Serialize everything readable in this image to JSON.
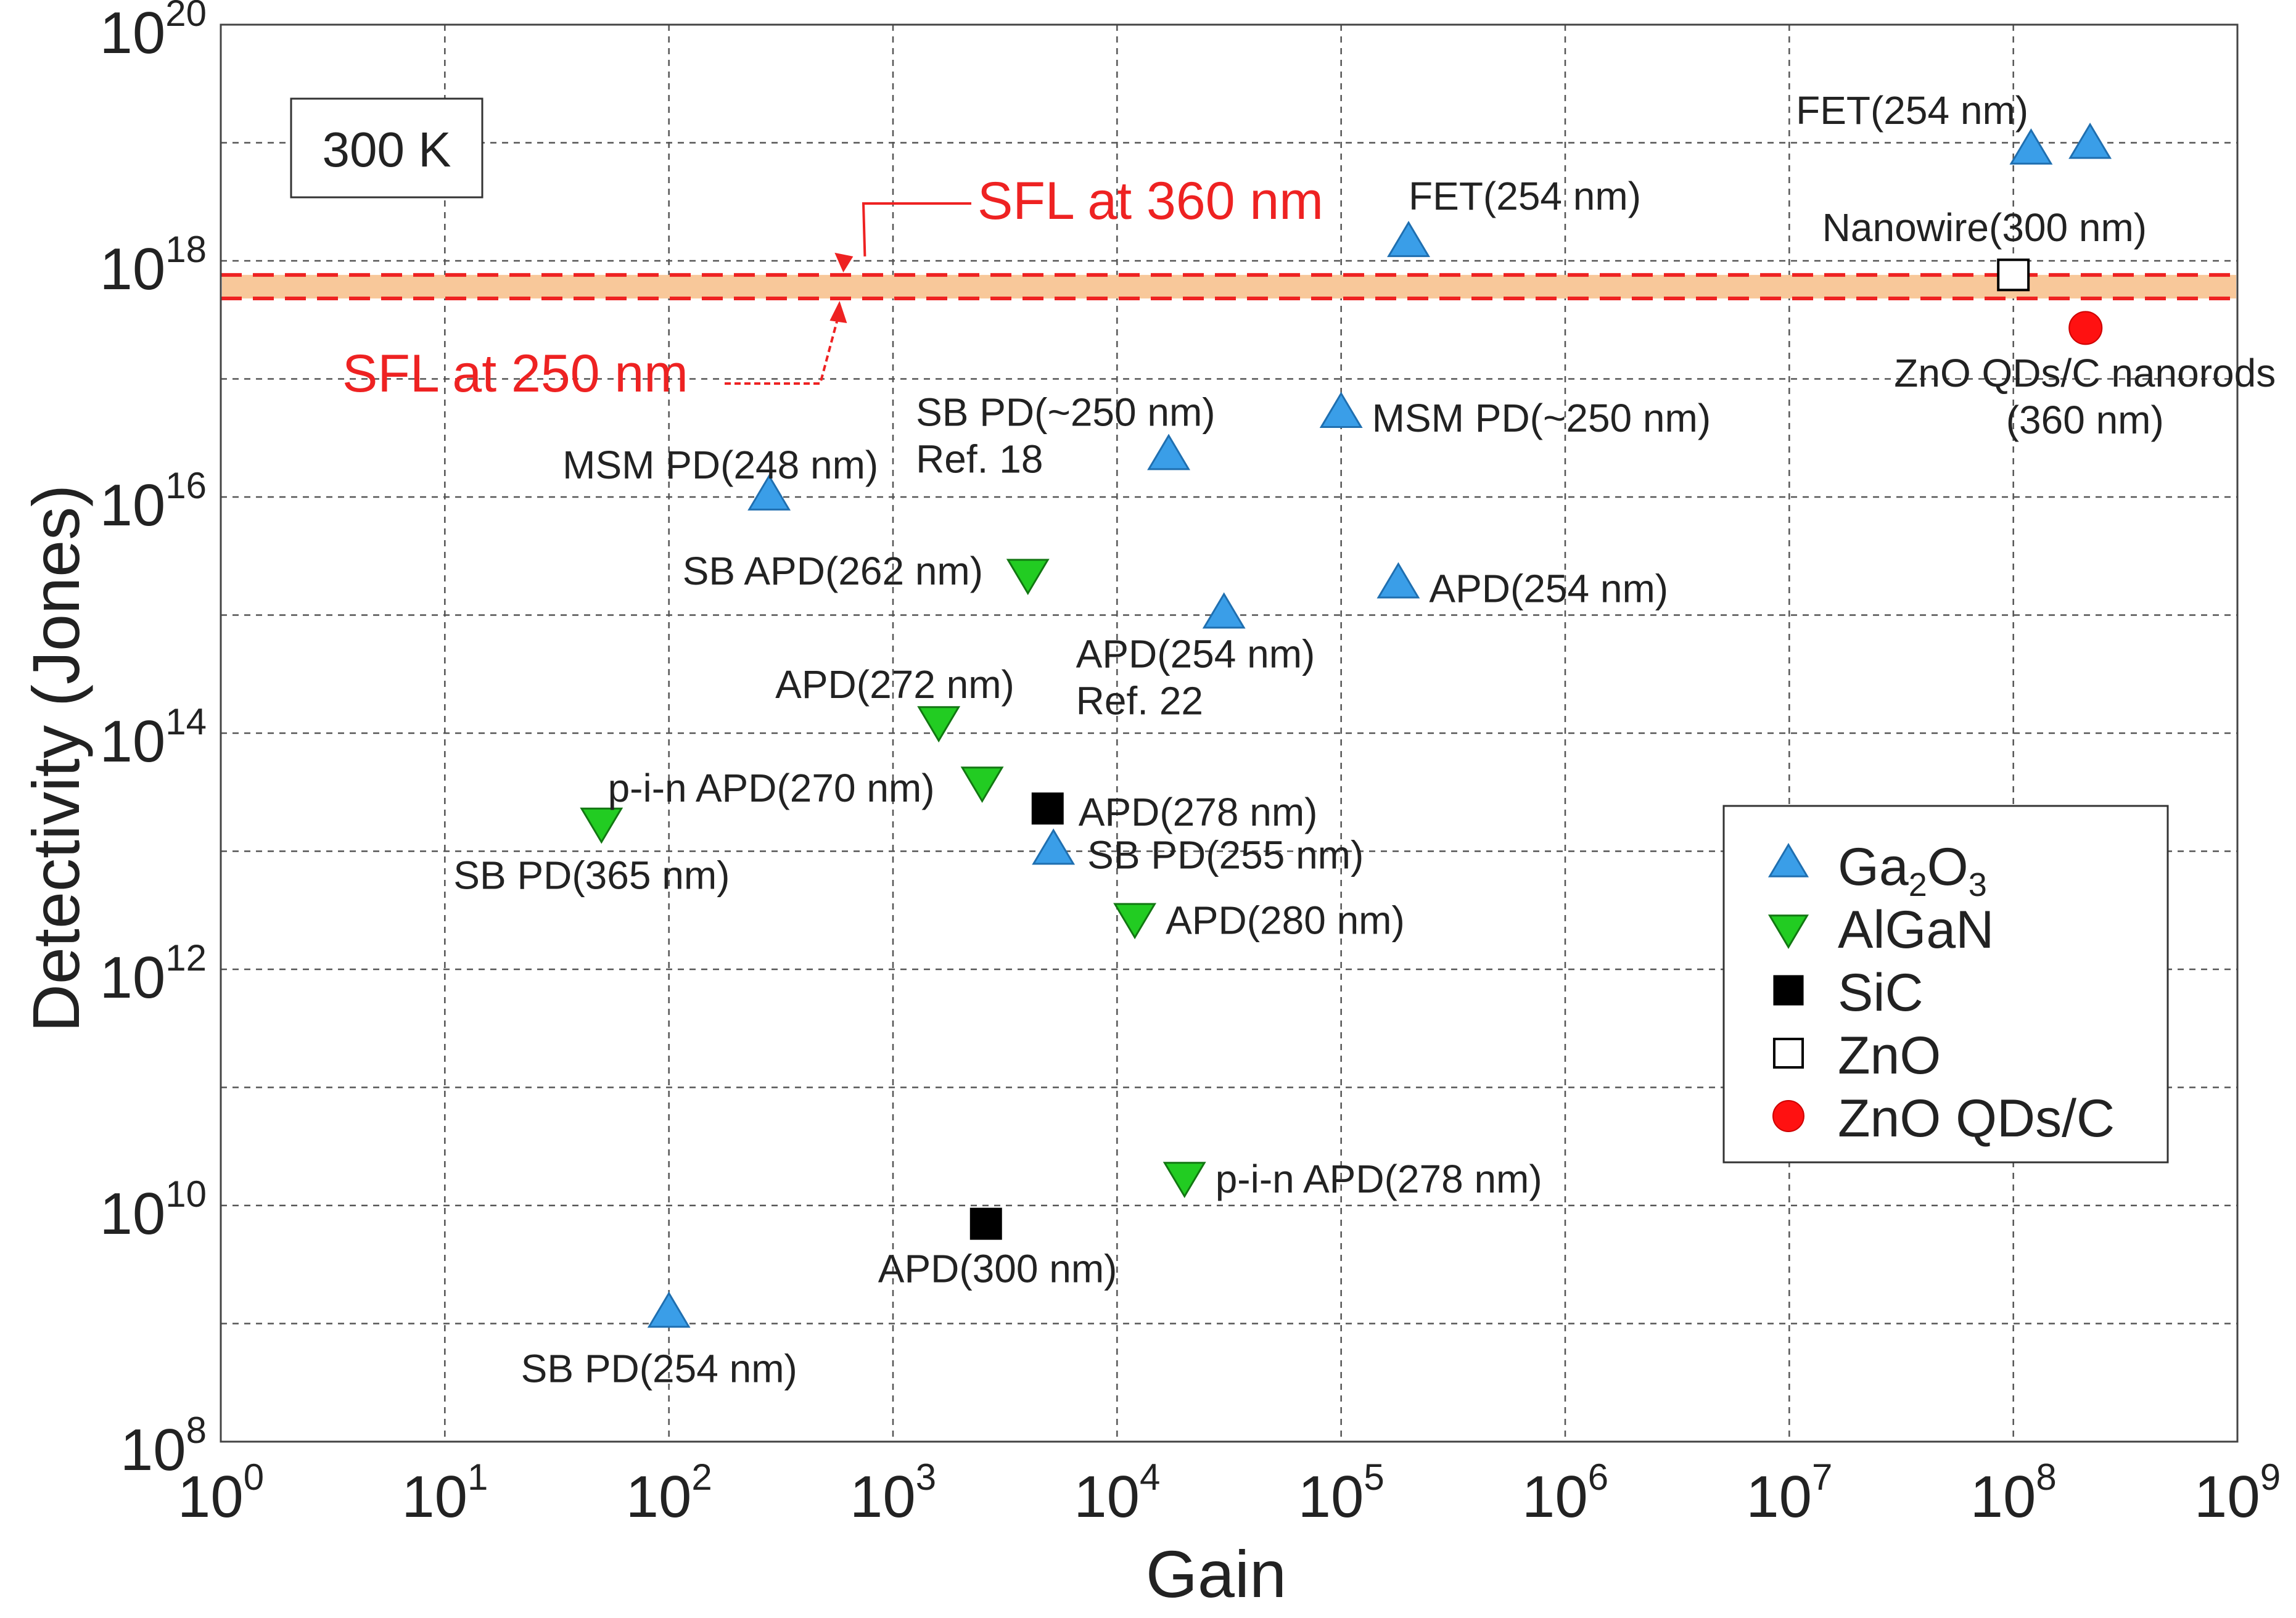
{
  "chart_data": {
    "type": "scatter",
    "title": "",
    "xlabel": "Gain",
    "ylabel": "Detectivity (Jones)",
    "x_scale": "log",
    "y_scale": "log",
    "xlim": [
      1,
      1000000000.0
    ],
    "ylim": [
      100000000.0,
      1e+20
    ],
    "grid": true,
    "x_ticks": [
      {
        "base": "10",
        "exp": "0",
        "value": 1
      },
      {
        "base": "10",
        "exp": "1",
        "value": 10.0
      },
      {
        "base": "10",
        "exp": "2",
        "value": 100.0
      },
      {
        "base": "10",
        "exp": "3",
        "value": 1000.0
      },
      {
        "base": "10",
        "exp": "4",
        "value": 10000.0
      },
      {
        "base": "10",
        "exp": "5",
        "value": 100000.0
      },
      {
        "base": "10",
        "exp": "6",
        "value": 1000000.0
      },
      {
        "base": "10",
        "exp": "7",
        "value": 10000000.0
      },
      {
        "base": "10",
        "exp": "8",
        "value": 100000000.0
      },
      {
        "base": "10",
        "exp": "9",
        "value": 1000000000.0
      }
    ],
    "y_ticks": [
      {
        "base": "10",
        "exp": "8",
        "value": 100000000.0
      },
      {
        "base": "10",
        "exp": "10",
        "value": 10000000000.0
      },
      {
        "base": "10",
        "exp": "12",
        "value": 1000000000000.0
      },
      {
        "base": "10",
        "exp": "14",
        "value": 100000000000000.0
      },
      {
        "base": "10",
        "exp": "16",
        "value": 1e+16
      },
      {
        "base": "10",
        "exp": "18",
        "value": 1e+18
      },
      {
        "base": "10",
        "exp": "20",
        "value": 1e+20
      }
    ],
    "temperature_label": "300 K",
    "colors": {
      "Ga2O3": "#3a9ee8",
      "AlGaN": "#22cc22",
      "SiC": "#000000",
      "ZnO": "#ffffff",
      "ZnO QDs/C": "#ff1111",
      "sfl_line": "#ee2222",
      "sfl_band": "#f8c89a"
    },
    "legend": {
      "position": "bottom-right",
      "entries": [
        {
          "series": "Ga2O3",
          "label": "Ga",
          "sub1": "2",
          "mid": "O",
          "sub2": "3"
        },
        {
          "series": "AlGaN",
          "label": "AlGaN"
        },
        {
          "series": "SiC",
          "label": "SiC"
        },
        {
          "series": "ZnO",
          "label": "ZnO"
        },
        {
          "series": "ZnO QDs/C",
          "label": "ZnO QDs/C"
        }
      ]
    },
    "reference_lines": [
      {
        "label": "SFL at 360 nm",
        "y": 7.6e+17
      },
      {
        "label": "SFL at 250 nm",
        "y": 4.8e+17
      }
    ],
    "series": [
      {
        "name": "Ga2O3",
        "marker": "triangle-up",
        "points": [
          {
            "x": 100,
            "y": 1200000000.0,
            "label": [
              "SB PD(254 nm)"
            ]
          },
          {
            "x": 280,
            "y": 1e+16,
            "label": [
              "MSM PD(248 nm)"
            ]
          },
          {
            "x": 5200,
            "y": 10000000000000.0,
            "label": [
              "SB PD(255 nm)"
            ]
          },
          {
            "x": 17000,
            "y": 2.2e+16,
            "label": [
              "SB PD(~250 nm)",
              "Ref. 18"
            ]
          },
          {
            "x": 30000,
            "y": 1000000000000000.0,
            "label": [
              "APD(254 nm)",
              "Ref. 22"
            ]
          },
          {
            "x": 100000,
            "y": 5e+16,
            "label": [
              "MSM PD(~250 nm)"
            ]
          },
          {
            "x": 180000,
            "y": 1800000000000000.0,
            "label": [
              "APD(254 nm)"
            ]
          },
          {
            "x": 200000,
            "y": 1.4e+18,
            "label": [
              "FET(254 nm)"
            ]
          },
          {
            "x": 120000000.0,
            "y": 8.5e+18,
            "label": []
          },
          {
            "x": 220000000.0,
            "y": 9.5e+18,
            "label": [
              "FET(254 nm)"
            ]
          }
        ]
      },
      {
        "name": "AlGaN",
        "marker": "triangle-down",
        "points": [
          {
            "x": 50,
            "y": 18000000000000.0,
            "label": [
              "SB PD(365 nm)"
            ]
          },
          {
            "x": 1600,
            "y": 130000000000000.0,
            "label": [
              "APD(272 nm)"
            ]
          },
          {
            "x": 2500,
            "y": 40000000000000.0,
            "label": [
              "p-i-n APD(270 nm)"
            ]
          },
          {
            "x": 4000,
            "y": 2300000000000000.0,
            "label": [
              "SB APD(262 nm)"
            ]
          },
          {
            "x": 12000,
            "y": 2800000000000.0,
            "label": [
              "APD(280 nm)"
            ]
          },
          {
            "x": 20000,
            "y": 18000000000.0,
            "label": [
              "p-i-n APD(278 nm)"
            ]
          }
        ]
      },
      {
        "name": "SiC",
        "marker": "square",
        "points": [
          {
            "x": 2600,
            "y": 7000000000.0,
            "label": [
              "APD(300 nm)"
            ]
          },
          {
            "x": 4900,
            "y": 23000000000000.0,
            "label": [
              "APD(278 nm)"
            ]
          }
        ]
      },
      {
        "name": "ZnO",
        "marker": "square-open",
        "points": [
          {
            "x": 100000000.0,
            "y": 7.6e+17,
            "label": [
              "Nanowire(300 nm)"
            ]
          }
        ]
      },
      {
        "name": "ZnO QDs/C",
        "marker": "circle",
        "points": [
          {
            "x": 210000000.0,
            "y": 2.7e+17,
            "label": [
              "ZnO QDs/C nanorods",
              "(360 nm)"
            ]
          }
        ]
      }
    ]
  }
}
